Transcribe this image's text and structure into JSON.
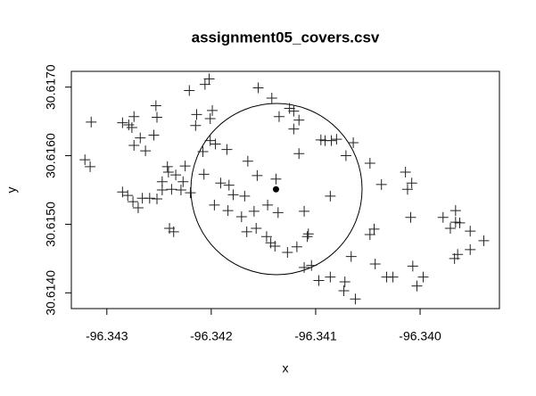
{
  "chart_data": {
    "type": "scatter",
    "title": "assignment05_covers.csv",
    "x_label": "x",
    "y_label": "y",
    "xlim": [
      -96.34334,
      -96.33924
    ],
    "ylim": [
      30.61377,
      30.61723
    ],
    "xticks": [
      -96.343,
      -96.342,
      -96.341,
      {
        "value": -96.34,
        "label": "-96.340"
      }
    ],
    "yticks": [
      {
        "value": 30.614,
        "label": "30.6140"
      },
      {
        "value": 30.615,
        "label": "30.6150"
      },
      {
        "value": 30.616,
        "label": "30.6160"
      },
      {
        "value": 30.617,
        "label": "30.6170"
      }
    ],
    "series": [
      {
        "marker": "plus",
        "color": "#222222",
        "x": [
          -96.34315,
          -96.34321,
          -96.34316,
          -96.34285,
          -96.34279,
          -96.34274,
          -96.34276,
          -96.34268,
          -96.34274,
          -96.34263,
          -96.34255,
          -96.34253,
          -96.34252,
          -96.34285,
          -96.3428,
          -96.34275,
          -96.3427,
          -96.34266,
          -96.34259,
          -96.34252,
          -96.34247,
          -96.34242,
          -96.34241,
          -96.34234,
          -96.34227,
          -96.34247,
          -96.34238,
          -96.34229,
          -96.3422,
          -96.34225,
          -96.3424,
          -96.34236,
          -96.34221,
          -96.34206,
          -96.34202,
          -96.34214,
          -96.34201,
          -96.34199,
          -96.34215,
          -96.34201,
          -96.34196,
          -96.34208,
          -96.34185,
          -96.34207,
          -96.34191,
          -96.34183,
          -96.34197,
          -96.34179,
          -96.34168,
          -96.34184,
          -96.34171,
          -96.34166,
          -96.34157,
          -96.34147,
          -96.34159,
          -96.34146,
          -96.34136,
          -96.34165,
          -96.34156,
          -96.34155,
          -96.34142,
          -96.34135,
          -96.34125,
          -96.34121,
          -96.34116,
          -96.34121,
          -96.34116,
          -96.34111,
          -96.34127,
          -96.34118,
          -96.34139,
          -96.34143,
          -96.34108,
          -96.34107,
          -96.34111,
          -96.34104,
          -96.34095,
          -96.34091,
          -96.34085,
          -96.3408,
          -96.34071,
          -96.34064,
          -96.34086,
          -96.34097,
          -96.34086,
          -96.34072,
          -96.34073,
          -96.34062,
          -96.34066,
          -96.34048,
          -96.34037,
          -96.34044,
          -96.34048,
          -96.34032,
          -96.34026,
          -96.34014,
          -96.34012,
          -96.34008,
          -96.34009,
          -96.34007,
          -96.33997,
          -96.34003,
          -96.33978,
          -96.33971,
          -96.33966,
          -96.33966,
          -96.33962,
          -96.33964,
          -96.33967,
          -96.33952,
          -96.33952,
          -96.33939,
          -96.34043,
          -96.34138
        ],
        "y": [
          30.61649,
          30.61594,
          30.61584,
          30.61648,
          30.61645,
          30.61657,
          30.61641,
          30.61626,
          30.61615,
          30.61607,
          30.6163,
          30.61673,
          30.61656,
          30.61547,
          30.61542,
          30.61533,
          30.61524,
          30.61538,
          30.61538,
          30.61537,
          30.61562,
          30.61584,
          30.61576,
          30.61572,
          30.61562,
          30.6155,
          30.61551,
          30.6155,
          30.61546,
          30.61585,
          30.61494,
          30.61489,
          30.61695,
          30.61704,
          30.61712,
          30.6166,
          30.61654,
          30.61666,
          30.61644,
          30.61622,
          30.61617,
          30.61606,
          30.61609,
          30.61573,
          30.6156,
          30.61557,
          30.61528,
          30.61543,
          30.61541,
          30.6152,
          30.61511,
          30.61489,
          30.61494,
          30.61482,
          30.61519,
          30.61528,
          30.61517,
          30.61592,
          30.61571,
          30.61699,
          30.61684,
          30.61657,
          30.61669,
          30.61665,
          30.61652,
          30.61639,
          30.61603,
          30.61519,
          30.61459,
          30.61467,
          30.61468,
          30.61473,
          30.61482,
          30.61486,
          30.61437,
          30.6144,
          30.61623,
          30.61622,
          30.61622,
          30.61624,
          30.616,
          30.61619,
          30.61541,
          30.61418,
          30.61423,
          30.61416,
          30.61403,
          30.61391,
          30.61453,
          30.61589,
          30.61558,
          30.61493,
          30.61485,
          30.61423,
          30.61423,
          30.61576,
          30.61551,
          30.6156,
          30.6151,
          30.61439,
          30.61423,
          30.6141,
          30.6151,
          30.61494,
          30.6152,
          30.61503,
          30.61502,
          30.61456,
          30.6145,
          30.6149,
          30.61463,
          30.61476,
          30.61442,
          30.61566
        ]
      },
      {
        "marker": "dot",
        "color": "#000000",
        "x": [
          -96.34138
        ],
        "y": [
          30.61551
        ]
      }
    ]
  }
}
